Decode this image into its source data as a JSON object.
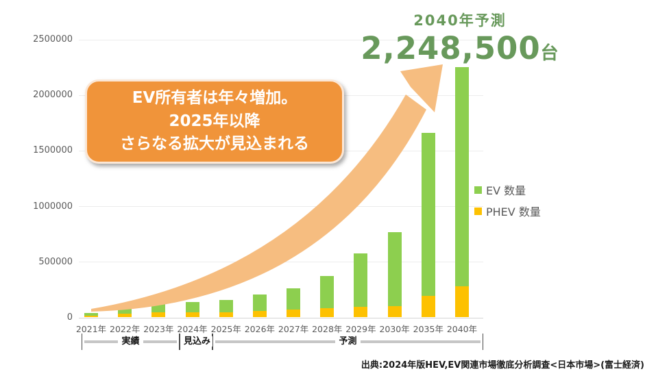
{
  "annotation": {
    "label": "2040年予測",
    "value": "2,248,500",
    "unit": "台"
  },
  "callout": {
    "lines": [
      "EV所有者は年々増加。",
      "2025年以降",
      "さらなる拡大が見込まれる"
    ]
  },
  "legend": {
    "items": [
      {
        "label": "EV 数量",
        "color": "#8dcf4f"
      },
      {
        "label": "PHEV 数量",
        "color": "#fdc101"
      }
    ]
  },
  "axis_groups": [
    {
      "label": "実績"
    },
    {
      "label": "見込み"
    },
    {
      "label": "予測"
    }
  ],
  "source": "出典:2024年版HEV,EV関連市場徹底分析調査<日本市場>(富士経済)",
  "colors": {
    "ev_bar": "#8dcf4f",
    "phev_bar": "#fdc101",
    "arrow": "#f6bd80",
    "accent_green_text": "#68995b",
    "callout_bg": "#f0943a",
    "axis_text": "#595959"
  },
  "chart_data": {
    "type": "bar",
    "stacked": true,
    "title": "2040年予測 2,248,500台",
    "categories": [
      "2021年",
      "2022年",
      "2023年",
      "2024年",
      "2025年",
      "2026年",
      "2027年",
      "2028年",
      "2029年",
      "2030年",
      "2035年",
      "2040年"
    ],
    "series": [
      {
        "name": "PHEV 数量",
        "color": "#fdc101",
        "values": [
          15000,
          30000,
          43000,
          42000,
          44000,
          56000,
          66000,
          80000,
          92000,
          100000,
          190000,
          275000
        ]
      },
      {
        "name": "EV 数量",
        "color": "#8dcf4f",
        "values": [
          25000,
          55000,
          100000,
          93000,
          112000,
          148000,
          190000,
          287000,
          478000,
          662000,
          1465000,
          1973500
        ]
      }
    ],
    "totals": [
      40000,
      85000,
      143000,
      135000,
      156000,
      204000,
      256000,
      367000,
      570000,
      762000,
      1655000,
      2248500
    ],
    "xlabel": "",
    "ylabel": "",
    "ylim": [
      0,
      2500000
    ],
    "yticks": [
      0,
      500000,
      1000000,
      1500000,
      2000000,
      2500000
    ],
    "grid": true,
    "legend_position": "right",
    "x_group_ranges": [
      {
        "label": "実績",
        "from": "2021年",
        "to": "2023年"
      },
      {
        "label": "見込み",
        "from": "2024年",
        "to": "2024年"
      },
      {
        "label": "予測",
        "from": "2025年",
        "to": "2040年"
      }
    ]
  }
}
